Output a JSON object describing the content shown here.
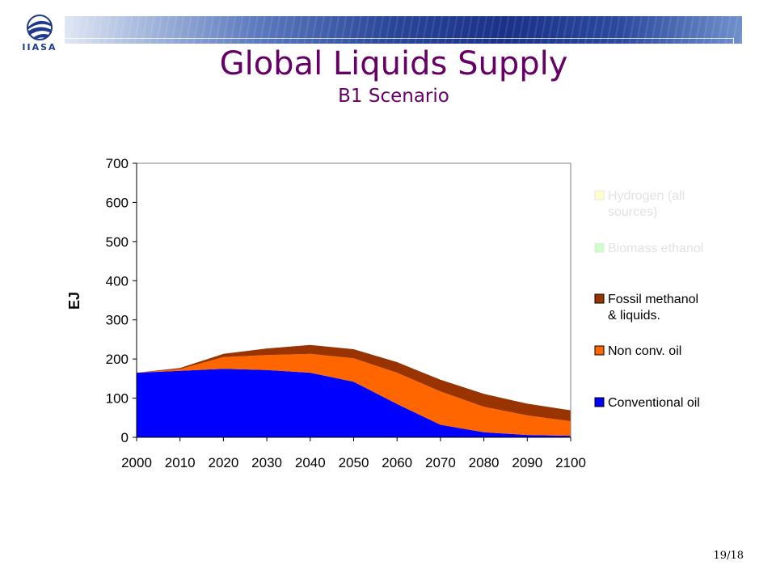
{
  "header": {
    "logo_text": "IIASA",
    "title": "Global Liquids Supply",
    "subtitle": "B1 Scenario"
  },
  "footer": {
    "page_number": "19/18"
  },
  "chart_data": {
    "type": "area",
    "stacked": true,
    "ylabel": "EJ",
    "xlabel": "",
    "ylim": [
      0,
      700
    ],
    "yticks": [
      0,
      100,
      200,
      300,
      400,
      500,
      600,
      700
    ],
    "x": [
      2000,
      2010,
      2020,
      2030,
      2040,
      2050,
      2060,
      2070,
      2080,
      2090,
      2100
    ],
    "legend_position": "right",
    "grid": false,
    "series": [
      {
        "name": "Conventional oil",
        "color": "#0000ff",
        "values": [
          165,
          170,
          175,
          172,
          165,
          142,
          85,
          32,
          13,
          6,
          4
        ]
      },
      {
        "name": "Non conv. oil",
        "color": "#ff6600",
        "values": [
          0,
          4,
          30,
          38,
          48,
          60,
          80,
          85,
          65,
          50,
          37
        ]
      },
      {
        "name": "Fossil methanol & liquids.",
        "color": "#993300",
        "values": [
          0,
          3,
          8,
          17,
          23,
          23,
          27,
          30,
          33,
          30,
          28
        ]
      },
      {
        "name": "Biomass ethanol",
        "color": "#ccffcc",
        "values": [
          0,
          0,
          0,
          0,
          0,
          0,
          0,
          0,
          0,
          0,
          0
        ]
      },
      {
        "name": "Hydrogen (all sources)",
        "color": "#ffffcc",
        "values": [
          0,
          0,
          0,
          0,
          0,
          0,
          0,
          0,
          0,
          0,
          0
        ]
      }
    ],
    "legend_order": [
      {
        "series": "Hydrogen (all sources)",
        "lines": [
          "Hydrogen (all",
          "sources)"
        ],
        "muted": true
      },
      {
        "series": "Biomass ethanol",
        "lines": [
          "Biomass ethanol"
        ],
        "muted": true
      },
      {
        "series": "Fossil methanol & liquids.",
        "lines": [
          "Fossil methanol",
          "& liquids."
        ],
        "muted": false
      },
      {
        "series": "Non conv. oil",
        "lines": [
          "Non conv. oil"
        ],
        "muted": false
      },
      {
        "series": "Conventional oil",
        "lines": [
          "Conventional oil"
        ],
        "muted": false
      }
    ]
  }
}
